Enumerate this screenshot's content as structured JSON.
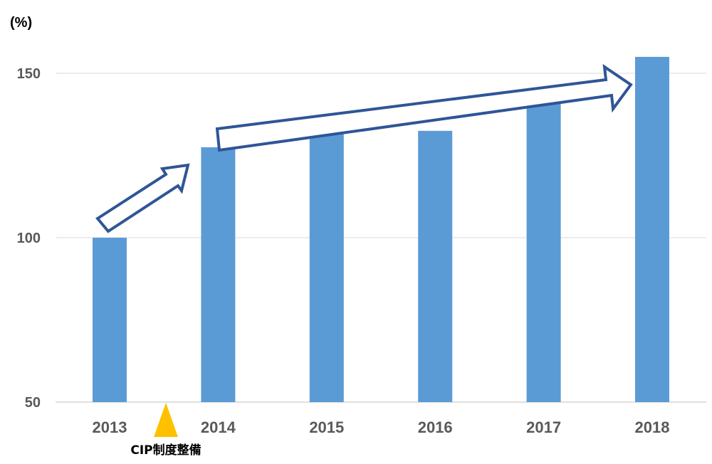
{
  "chart_data": {
    "type": "bar",
    "unit_label": "(%)",
    "categories": [
      "2013",
      "2014",
      "2015",
      "2016",
      "2017",
      "2018"
    ],
    "values": [
      100,
      127.5,
      134.5,
      132.5,
      143,
      155
    ],
    "ylim": [
      50,
      150
    ],
    "yticks": [
      "50",
      "100",
      "150"
    ],
    "grid": true,
    "bar_color": "#5B9BD5",
    "annotation": {
      "text": "CIP制度整備",
      "marker": "triangle",
      "marker_color": "#FFC000"
    },
    "arrow_color": "#2F5597"
  }
}
